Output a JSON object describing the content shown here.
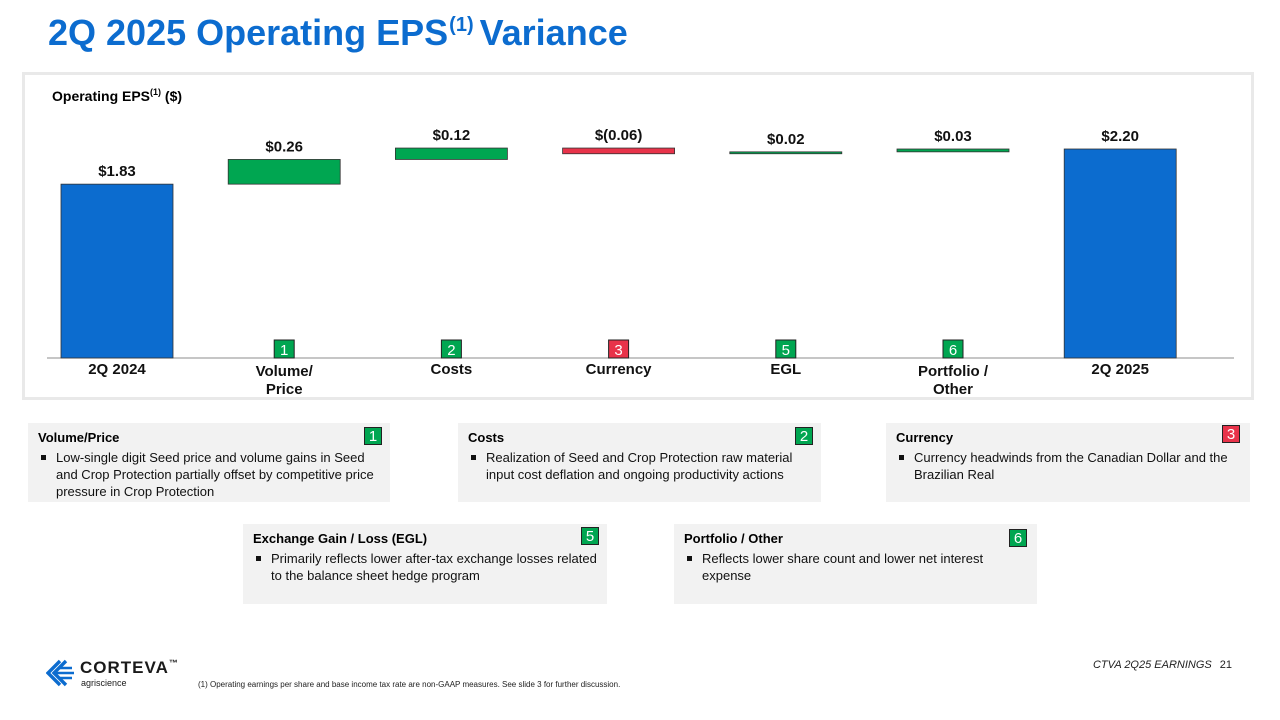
{
  "title": {
    "main": "2Q 2025 Operating EPS",
    "sup": "(1)",
    "suffix": "Variance"
  },
  "chart_data": {
    "type": "bar",
    "subtype": "waterfall",
    "ylabel": {
      "text": "Operating EPS",
      "sup": "(1)",
      "unit": "($)"
    },
    "categories": [
      "2Q 2024",
      "Volume/\nPrice",
      "Costs",
      "Currency",
      "EGL",
      "Portfolio /\nOther",
      "2Q 2025"
    ],
    "values": [
      1.83,
      0.26,
      0.12,
      -0.06,
      0.02,
      0.03,
      2.2
    ],
    "kinds": [
      "total",
      "delta",
      "delta",
      "delta",
      "delta",
      "delta",
      "total"
    ],
    "data_labels": [
      "$1.83",
      "$0.26",
      "$0.12",
      "$(0.06)",
      "$0.02",
      "$0.03",
      "$2.20"
    ],
    "badges": [
      "",
      "1",
      "2",
      "3",
      "5",
      "6",
      ""
    ],
    "ylim": [
      0,
      2.4
    ],
    "grid": false,
    "legend": "none",
    "colors": {
      "total": "#0c6ccf",
      "increase": "#00a651",
      "decrease": "#e8334a"
    }
  },
  "cards": [
    {
      "badge": "1",
      "badge_color": "green",
      "title": "Volume/Price",
      "bullets": [
        "Low-single digit Seed price and volume gains in Seed and Crop Protection partially offset by competitive price pressure in Crop Protection"
      ]
    },
    {
      "badge": "2",
      "badge_color": "green",
      "title": "Costs",
      "bullets": [
        "Realization of Seed and Crop Protection raw material input cost deflation and ongoing productivity actions"
      ]
    },
    {
      "badge": "3",
      "badge_color": "red",
      "title": "Currency",
      "bullets": [
        "Currency headwinds from the Canadian Dollar and the Brazilian Real"
      ]
    },
    {
      "badge": "5",
      "badge_color": "green",
      "title": "Exchange Gain / Loss (EGL)",
      "bullets": [
        "Primarily reflects lower after-tax exchange losses related to the balance sheet hedge program"
      ]
    },
    {
      "badge": "6",
      "badge_color": "green",
      "title": "Portfolio / Other",
      "bullets": [
        "Reflects lower share count and lower net interest expense"
      ]
    }
  ],
  "footnote": "(1) Operating earnings per share and base income tax rate are non-GAAP measures. See slide 3 for further discussion.",
  "footer": {
    "label": "CTVA 2Q25 EARNINGS",
    "page": "21"
  },
  "logo": {
    "name": "CORTEVA",
    "tm": "™",
    "sub": "agriscience",
    "icon": "corteva-logo-icon"
  }
}
